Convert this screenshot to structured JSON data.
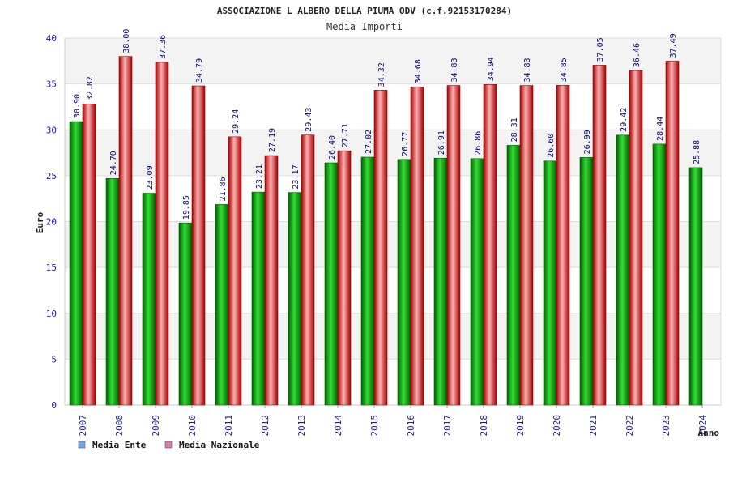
{
  "chart_data": {
    "type": "bar",
    "title": "ASSOCIAZIONE L ALBERO DELLA PIUMA ODV (c.f.92153170284)",
    "subtitle": "Media Importi",
    "xlabel": "Anno",
    "ylabel": "Euro",
    "ylim": [
      0,
      40
    ],
    "yticks": [
      0,
      5,
      10,
      15,
      20,
      25,
      30,
      35,
      40
    ],
    "grid": true,
    "legend_position": "bottom-left",
    "categories": [
      "2007",
      "2008",
      "2009",
      "2010",
      "2011",
      "2012",
      "2013",
      "2014",
      "2015",
      "2016",
      "2017",
      "2018",
      "2019",
      "2020",
      "2021",
      "2022",
      "2023",
      "2024"
    ],
    "series": [
      {
        "name": "Media Ente",
        "color": "#00a000",
        "legend_color": "#6aa8ee",
        "values": [
          30.9,
          24.7,
          23.09,
          19.85,
          21.86,
          23.21,
          23.17,
          26.4,
          27.02,
          26.77,
          26.91,
          26.86,
          28.31,
          26.6,
          26.99,
          29.42,
          28.44,
          25.88
        ],
        "labels": [
          "30.90",
          "24.70",
          "23.09",
          "19.85",
          "21.86",
          "23.21",
          "23.17",
          "26.40",
          "27.02",
          "26.77",
          "26.91",
          "26.86",
          "28.31",
          "26.60",
          "26.99",
          "29.42",
          "28.44",
          "25.88"
        ]
      },
      {
        "name": "Media Nazionale",
        "color": "#e02020",
        "legend_color": "#e07ab0",
        "values": [
          32.82,
          38.0,
          37.36,
          34.79,
          29.24,
          27.19,
          29.43,
          27.71,
          34.32,
          34.68,
          34.83,
          34.94,
          34.83,
          34.85,
          37.05,
          36.46,
          37.49,
          null
        ],
        "labels": [
          "32.82",
          "38.00",
          "37.36",
          "34.79",
          "29.24",
          "27.19",
          "29.43",
          "27.71",
          "34.32",
          "34.68",
          "34.83",
          "34.94",
          "34.83",
          "34.85",
          "37.05",
          "36.46",
          "37.49",
          null
        ]
      }
    ]
  }
}
